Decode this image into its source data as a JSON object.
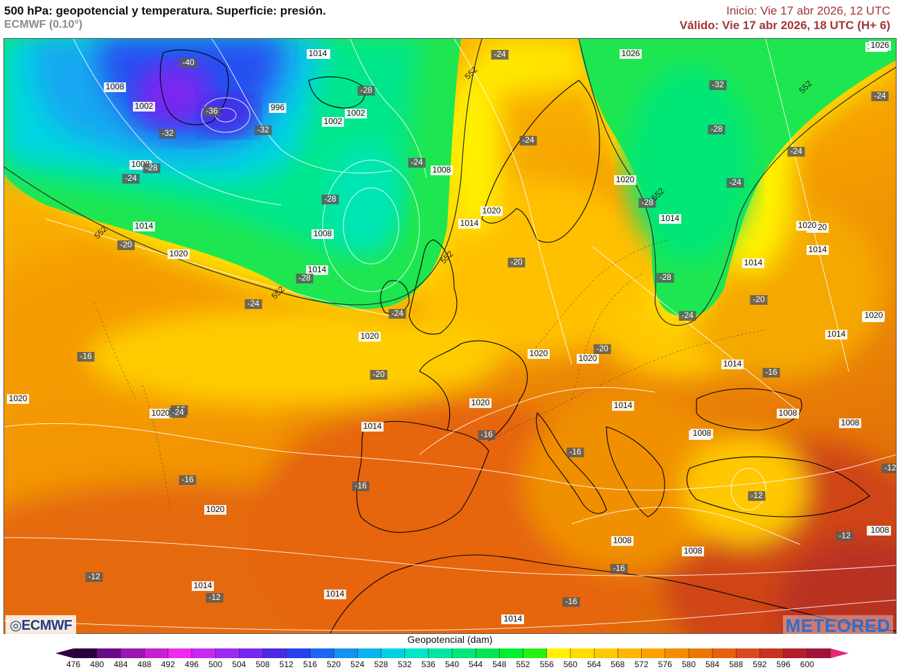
{
  "header": {
    "title": "500 hPa: geopotencial y temperatura. Superficie: presión.",
    "model": "ECMWF (0.10°)",
    "init": "Inicio: Vie 17 abr 2026, 12 UTC",
    "valid": "Válido: Vie 17 abr 2026, 18 UTC (H+ 6)"
  },
  "logos": {
    "left": "ECMWF",
    "right": "METEORED"
  },
  "legend": {
    "title": "Geopotencial (dam)",
    "ticks": [
      "476",
      "480",
      "484",
      "488",
      "492",
      "496",
      "500",
      "504",
      "508",
      "512",
      "516",
      "520",
      "524",
      "528",
      "532",
      "536",
      "540",
      "544",
      "548",
      "552",
      "556",
      "560",
      "564",
      "568",
      "572",
      "576",
      "580",
      "584",
      "588",
      "592",
      "596",
      "600"
    ],
    "colors": [
      "#2a0040",
      "#6a0a8a",
      "#9c14b4",
      "#c81ed2",
      "#f028f0",
      "#c828f0",
      "#a028f0",
      "#7828f0",
      "#4a28e6",
      "#2840f0",
      "#1e64f0",
      "#1490f0",
      "#0ab4f0",
      "#00d2e6",
      "#00e6c8",
      "#00e6a0",
      "#00e678",
      "#00e650",
      "#00f02c",
      "#28f014",
      "#fff000",
      "#ffdc00",
      "#ffc800",
      "#ffb400",
      "#ffa000",
      "#f58c00",
      "#eb7800",
      "#e65f0f",
      "#dc4b1e",
      "#c8321e",
      "#b41e28",
      "#a0143c"
    ]
  },
  "map_labels": {
    "pressure": [
      "1002",
      "1008",
      "1002",
      "996",
      "1002",
      "1002",
      "1008",
      "1008",
      "1014",
      "1014",
      "1008",
      "1014",
      "1020",
      "1020",
      "1020",
      "1020",
      "1014",
      "1020",
      "1020",
      "1020",
      "1020",
      "1020",
      "1014",
      "1020",
      "1014",
      "1008",
      "1008",
      "1008",
      "1014",
      "1014",
      "1008",
      "1008",
      "1014",
      "1020",
      "1020",
      "1014",
      "1014",
      "1026",
      "1026",
      "1020",
      "1014",
      "1020",
      "1008",
      "1014",
      "1014",
      "1014",
      "1008",
      "1020",
      "1014"
    ],
    "temperature": [
      "-40",
      "-36",
      "-32",
      "-32",
      "-28",
      "-28",
      "-24",
      "-24",
      "-28",
      "-24",
      "-20",
      "-24",
      "-24",
      "-24",
      "-28",
      "-24",
      "-32",
      "-28",
      "-24",
      "-24",
      "-28",
      "-24",
      "-20",
      "-20",
      "-20",
      "-20",
      "-16",
      "-16",
      "-16",
      "-16",
      "-16",
      "-16",
      "-16",
      "-12",
      "-12",
      "-12",
      "-16",
      "-16",
      "-12",
      "-12",
      "-28",
      "-24"
    ],
    "isohypse": [
      "552",
      "552",
      "552",
      "552",
      "552",
      "552"
    ]
  }
}
